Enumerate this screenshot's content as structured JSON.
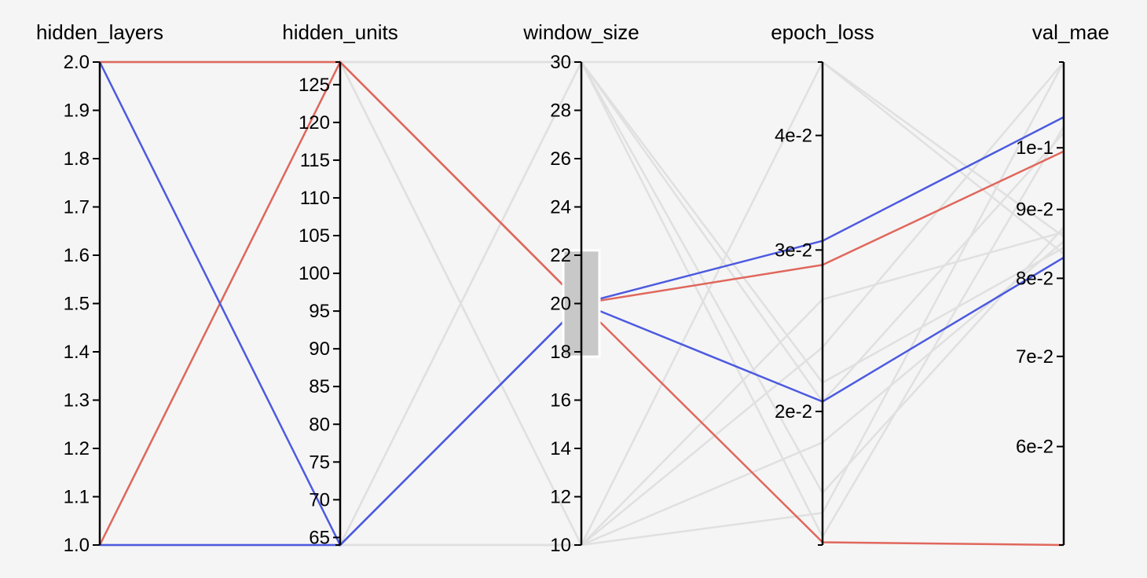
{
  "chart_data": {
    "type": "parallel-coordinates",
    "axes": [
      {
        "key": "hidden_layers",
        "label": "hidden_layers",
        "scale": "linear",
        "range": [
          1.0,
          2.0
        ],
        "ticks": [
          1.0,
          1.1,
          1.2,
          1.3,
          1.4,
          1.5,
          1.6,
          1.7,
          1.8,
          1.9,
          2.0
        ],
        "tick_labels": [
          "1.0",
          "1.1",
          "1.2",
          "1.3",
          "1.4",
          "1.5",
          "1.6",
          "1.7",
          "1.8",
          "1.9",
          "2.0"
        ]
      },
      {
        "key": "hidden_units",
        "label": "hidden_units",
        "scale": "linear",
        "range": [
          64,
          128
        ],
        "ticks": [
          65,
          70,
          75,
          80,
          85,
          90,
          95,
          100,
          105,
          110,
          115,
          120,
          125
        ],
        "tick_labels": [
          "65",
          "70",
          "75",
          "80",
          "85",
          "90",
          "95",
          "100",
          "105",
          "110",
          "115",
          "120",
          "125"
        ]
      },
      {
        "key": "window_size",
        "label": "window_size",
        "scale": "linear",
        "range": [
          10,
          30
        ],
        "ticks": [
          10,
          12,
          14,
          16,
          18,
          20,
          22,
          24,
          26,
          28,
          30
        ],
        "tick_labels": [
          "10",
          "12",
          "14",
          "16",
          "18",
          "20",
          "22",
          "24",
          "26",
          "28",
          "30"
        ],
        "brush": [
          17.8,
          22.2
        ]
      },
      {
        "key": "epoch_loss",
        "label": "epoch_loss",
        "scale": "log",
        "range": [
          0.0143,
          0.0481
        ],
        "ticks": [
          0.02,
          0.03,
          0.04
        ],
        "tick_labels": [
          "2e-2",
          "3e-2",
          "4e-2"
        ]
      },
      {
        "key": "val_mae",
        "label": "val_mae",
        "scale": "log",
        "range": [
          0.0507,
          0.1158
        ],
        "ticks": [
          0.06,
          0.07,
          0.08,
          0.09,
          0.1
        ],
        "tick_labels": [
          "6e-2",
          "7e-2",
          "8e-2",
          "9e-2",
          "1e-1"
        ]
      }
    ],
    "series": [
      {
        "color": "#e0675c",
        "values": [
          1.0,
          128,
          20,
          0.0289,
          0.0994
        ]
      },
      {
        "color": "#e0675c",
        "values": [
          2.0,
          128,
          20,
          0.0144,
          0.0507
        ]
      },
      {
        "color": "#4c5ae0",
        "values": [
          2.0,
          64,
          20,
          0.0307,
          0.1054
        ]
      },
      {
        "color": "#4c5ae0",
        "values": [
          1.0,
          64,
          20,
          0.0205,
          0.0829
        ]
      },
      {
        "color": "#e0e0e0",
        "values": [
          1.0,
          64,
          10,
          0.0185,
          0.0852
        ]
      },
      {
        "color": "#e0e0e0",
        "values": [
          1.0,
          64,
          10,
          0.0235,
          0.1158
        ]
      },
      {
        "color": "#e0e0e0",
        "values": [
          1.0,
          64,
          10,
          0.0481,
          0.0859
        ]
      },
      {
        "color": "#e0e0e0",
        "values": [
          1.0,
          64,
          30,
          0.0205,
          0.1026
        ]
      },
      {
        "color": "#e0e0e0",
        "values": [
          1.0,
          128,
          10,
          0.0155,
          0.1158
        ]
      },
      {
        "color": "#e0e0e0",
        "values": [
          1.0,
          128,
          10,
          0.0265,
          0.0866
        ]
      },
      {
        "color": "#e0e0e0",
        "values": [
          2.0,
          128,
          30,
          0.0163,
          0.0873
        ]
      },
      {
        "color": "#e0e0e0",
        "values": [
          2.0,
          128,
          30,
          0.0215,
          0.0843
        ]
      },
      {
        "color": "#e0e0e0",
        "values": [
          2.0,
          128,
          30,
          0.0146,
          0.1037
        ]
      },
      {
        "color": "#e0e0e0",
        "values": [
          1.0,
          64,
          30,
          0.0481,
          0.0834
        ]
      }
    ],
    "colors": {
      "red": "#e0675c",
      "blue": "#4c5ae0",
      "inactive": "#e0e0e0",
      "brush": "#c8c8c8"
    }
  }
}
